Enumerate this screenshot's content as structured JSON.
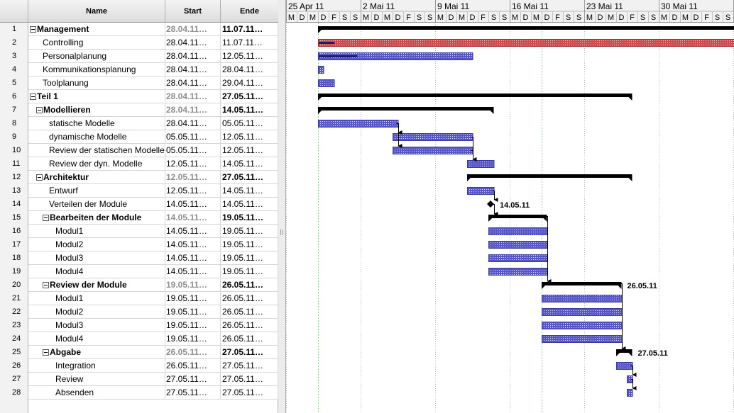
{
  "columns": {
    "name": "Name",
    "start": "Start",
    "end": "Ende"
  },
  "weeks": [
    "25 Apr 11",
    "2 Mai 11",
    "9 Mai 11",
    "16 Mai 11",
    "23 Mai 11",
    "30 Mai 11"
  ],
  "day_letters": [
    "M",
    "D",
    "M",
    "D",
    "F",
    "S",
    "S"
  ],
  "tasks": [
    {
      "num": "1",
      "name": "Management",
      "start": "28.04.11…",
      "end": "11.07.11…",
      "level": 0,
      "summary": true
    },
    {
      "num": "2",
      "name": "Controlling",
      "start": "28.04.11…",
      "end": "11.07.11…",
      "level": 1,
      "summary": false
    },
    {
      "num": "3",
      "name": "Personalplanung",
      "start": "28.04.11…",
      "end": "12.05.11…",
      "level": 1,
      "summary": false
    },
    {
      "num": "4",
      "name": "Kommunikationsplanung",
      "start": "28.04.11…",
      "end": "28.04.11…",
      "level": 1,
      "summary": false
    },
    {
      "num": "5",
      "name": "Toolplanung",
      "start": "28.04.11…",
      "end": "29.04.11…",
      "level": 1,
      "summary": false
    },
    {
      "num": "6",
      "name": "Teil 1",
      "start": "28.04.11…",
      "end": "27.05.11…",
      "level": 0,
      "summary": true
    },
    {
      "num": "7",
      "name": "Modellieren",
      "start": "28.04.11…",
      "end": "14.05.11…",
      "level": 1,
      "summary": true
    },
    {
      "num": "8",
      "name": "statische Modelle",
      "start": "28.04.11…",
      "end": "05.05.11…",
      "level": 2,
      "summary": false
    },
    {
      "num": "9",
      "name": "dynamische Modelle",
      "start": "05.05.11…",
      "end": "12.05.11…",
      "level": 2,
      "summary": false
    },
    {
      "num": "10",
      "name": "Review der statischen Modelle",
      "start": "05.05.11…",
      "end": "12.05.11…",
      "level": 2,
      "summary": false
    },
    {
      "num": "11",
      "name": "Review der dyn. Modelle",
      "start": "12.05.11…",
      "end": "14.05.11…",
      "level": 2,
      "summary": false
    },
    {
      "num": "12",
      "name": "Architektur",
      "start": "12.05.11…",
      "end": "27.05.11…",
      "level": 1,
      "summary": true
    },
    {
      "num": "13",
      "name": "Entwurf",
      "start": "12.05.11…",
      "end": "14.05.11…",
      "level": 2,
      "summary": false
    },
    {
      "num": "14",
      "name": "Verteilen der Module",
      "start": "14.05.11…",
      "end": "14.05.11…",
      "level": 2,
      "summary": false
    },
    {
      "num": "15",
      "name": "Bearbeiten der Module",
      "start": "14.05.11…",
      "end": "19.05.11…",
      "level": 2,
      "summary": true
    },
    {
      "num": "16",
      "name": "Modul1",
      "start": "14.05.11…",
      "end": "19.05.11…",
      "level": 3,
      "summary": false
    },
    {
      "num": "17",
      "name": "Modul2",
      "start": "14.05.11…",
      "end": "19.05.11…",
      "level": 3,
      "summary": false
    },
    {
      "num": "18",
      "name": "Modul3",
      "start": "14.05.11…",
      "end": "19.05.11…",
      "level": 3,
      "summary": false
    },
    {
      "num": "19",
      "name": "Modul4",
      "start": "14.05.11…",
      "end": "19.05.11…",
      "level": 3,
      "summary": false
    },
    {
      "num": "20",
      "name": "Review der Module",
      "start": "19.05.11…",
      "end": "26.05.11…",
      "level": 2,
      "summary": true
    },
    {
      "num": "21",
      "name": "Modul1",
      "start": "19.05.11…",
      "end": "26.05.11…",
      "level": 3,
      "summary": false
    },
    {
      "num": "22",
      "name": "Modul2",
      "start": "19.05.11…",
      "end": "26.05.11…",
      "level": 3,
      "summary": false
    },
    {
      "num": "23",
      "name": "Modul3",
      "start": "19.05.11…",
      "end": "26.05.11…",
      "level": 3,
      "summary": false
    },
    {
      "num": "24",
      "name": "Modul4",
      "start": "19.05.11…",
      "end": "26.05.11…",
      "level": 3,
      "summary": false
    },
    {
      "num": "25",
      "name": "Abgabe",
      "start": "26.05.11…",
      "end": "27.05.11…",
      "level": 2,
      "summary": true
    },
    {
      "num": "26",
      "name": "Integration",
      "start": "26.05.11…",
      "end": "27.05.11…",
      "level": 3,
      "summary": false
    },
    {
      "num": "27",
      "name": "Review",
      "start": "27.05.11…",
      "end": "27.05.11…",
      "level": 3,
      "summary": false
    },
    {
      "num": "28",
      "name": "Absenden",
      "start": "27.05.11…",
      "end": "27.05.11…",
      "level": 3,
      "summary": false
    }
  ],
  "gantt": {
    "timeline_start": "25.04.11",
    "today_marker": "28.04.11",
    "colors": {
      "task": "#5757c8",
      "summary": "#000000",
      "overdue": "#d04848",
      "progress": "#1d1d6a"
    },
    "bars": [
      {
        "row": 1,
        "kind": "summary",
        "start": "28.04.11",
        "end": "11.07.11"
      },
      {
        "row": 2,
        "kind": "overdue",
        "start": "28.04.11",
        "end": "11.07.11",
        "progress": 0.02
      },
      {
        "row": 3,
        "kind": "task",
        "start": "28.04.11",
        "end": "12.05.11",
        "progress": 0.25
      },
      {
        "row": 4,
        "kind": "task",
        "start": "28.04.11",
        "end": "28.04.11"
      },
      {
        "row": 5,
        "kind": "task",
        "start": "28.04.11",
        "end": "29.04.11"
      },
      {
        "row": 6,
        "kind": "summary",
        "start": "28.04.11",
        "end": "27.05.11"
      },
      {
        "row": 7,
        "kind": "summary",
        "start": "28.04.11",
        "end": "14.05.11"
      },
      {
        "row": 8,
        "kind": "task",
        "start": "28.04.11",
        "end": "05.05.11"
      },
      {
        "row": 9,
        "kind": "task",
        "start": "05.05.11",
        "end": "12.05.11"
      },
      {
        "row": 10,
        "kind": "task",
        "start": "05.05.11",
        "end": "12.05.11"
      },
      {
        "row": 11,
        "kind": "task",
        "start": "12.05.11",
        "end": "14.05.11"
      },
      {
        "row": 12,
        "kind": "summary",
        "start": "12.05.11",
        "end": "27.05.11"
      },
      {
        "row": 13,
        "kind": "task",
        "start": "12.05.11",
        "end": "14.05.11"
      },
      {
        "row": 14,
        "kind": "milestone",
        "start": "14.05.11",
        "end": "14.05.11",
        "label": "14.05.11"
      },
      {
        "row": 15,
        "kind": "summary",
        "start": "14.05.11",
        "end": "19.05.11"
      },
      {
        "row": 16,
        "kind": "task",
        "start": "14.05.11",
        "end": "19.05.11"
      },
      {
        "row": 17,
        "kind": "task",
        "start": "14.05.11",
        "end": "19.05.11"
      },
      {
        "row": 18,
        "kind": "task",
        "start": "14.05.11",
        "end": "19.05.11"
      },
      {
        "row": 19,
        "kind": "task",
        "start": "14.05.11",
        "end": "19.05.11"
      },
      {
        "row": 20,
        "kind": "summary",
        "start": "19.05.11",
        "end": "26.05.11",
        "label": "26.05.11"
      },
      {
        "row": 21,
        "kind": "task",
        "start": "19.05.11",
        "end": "26.05.11"
      },
      {
        "row": 22,
        "kind": "task",
        "start": "19.05.11",
        "end": "26.05.11"
      },
      {
        "row": 23,
        "kind": "task",
        "start": "19.05.11",
        "end": "26.05.11"
      },
      {
        "row": 24,
        "kind": "task",
        "start": "19.05.11",
        "end": "26.05.11"
      },
      {
        "row": 25,
        "kind": "summary",
        "start": "26.05.11",
        "end": "27.05.11",
        "label": "27.05.11"
      },
      {
        "row": 26,
        "kind": "task",
        "start": "26.05.11",
        "end": "27.05.11"
      },
      {
        "row": 27,
        "kind": "task",
        "start": "27.05.11",
        "end": "27.05.11"
      },
      {
        "row": 28,
        "kind": "task",
        "start": "27.05.11",
        "end": "27.05.11"
      }
    ],
    "dependencies": [
      [
        8,
        9
      ],
      [
        8,
        10
      ],
      [
        9,
        11
      ],
      [
        10,
        11
      ],
      [
        13,
        14
      ],
      [
        14,
        15
      ],
      [
        15,
        20
      ],
      [
        20,
        25
      ],
      [
        26,
        27
      ],
      [
        27,
        28
      ]
    ]
  }
}
